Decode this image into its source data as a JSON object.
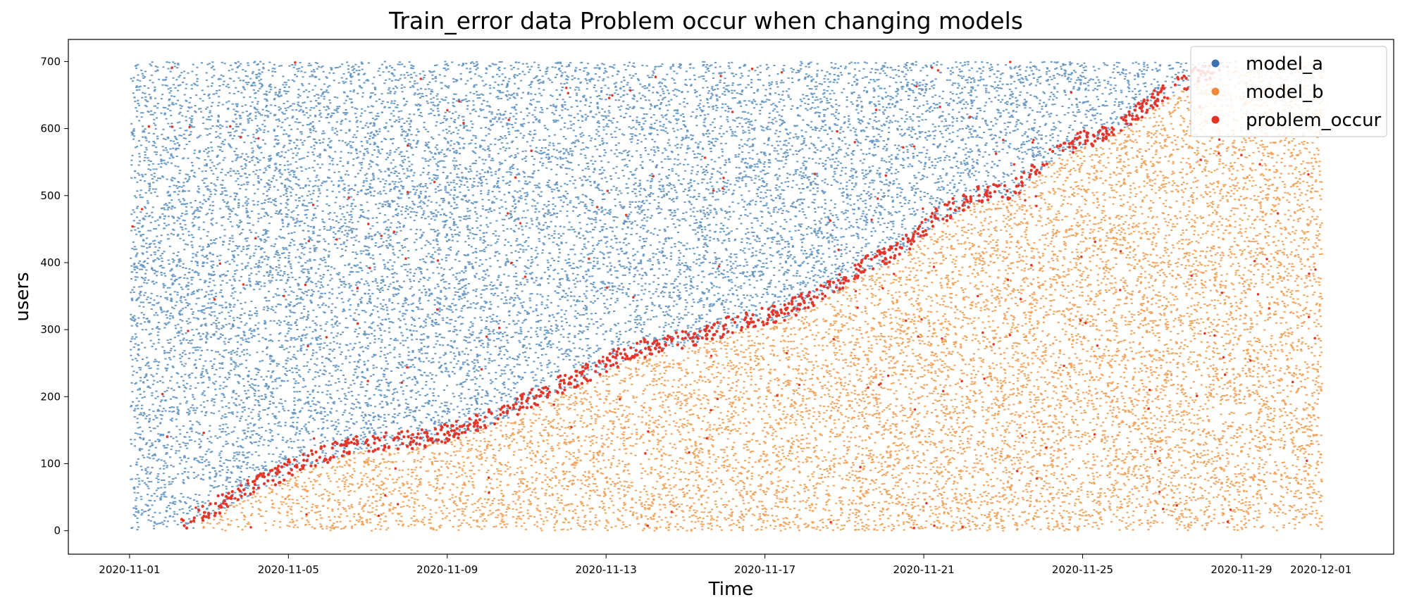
{
  "chart_data": {
    "type": "scatter",
    "title": "Train_error data Problem occur when changing models",
    "xlabel": "Time",
    "ylabel": "users",
    "xlim": [
      "2020-10-30T11:00",
      "2020-12-02T20:00"
    ],
    "ylim": [
      -35,
      733
    ],
    "x_ticks": [
      "2020-11-01",
      "2020-11-05",
      "2020-11-09",
      "2020-11-13",
      "2020-11-17",
      "2020-11-21",
      "2020-11-25",
      "2020-11-29",
      "2020-12-01"
    ],
    "y_ticks": [
      0,
      100,
      200,
      300,
      400,
      500,
      600,
      700
    ],
    "users_range": [
      0,
      700
    ],
    "time_range": [
      "2020-11-01",
      "2020-12-01"
    ],
    "grid": false,
    "legend": "top-right",
    "series": [
      {
        "name": "model_a",
        "color": "#6b9ac4",
        "legend_color": "#3c73ae",
        "description_region": "above switch boundary"
      },
      {
        "name": "model_b",
        "color": "#f2a55e",
        "legend_color": "#ee8a3a",
        "description_region": "below switch boundary"
      },
      {
        "name": "problem_occur",
        "color": "#e6352a",
        "legend_color": "#e03324",
        "description_region": "along switch boundary"
      }
    ],
    "switch_boundary": [
      {
        "t": "2020-11-01T00:00",
        "user": 0
      },
      {
        "t": "2020-11-02T12:00",
        "user": 0
      },
      {
        "t": "2020-11-03T00:00",
        "user": 22
      },
      {
        "t": "2020-11-04T06:00",
        "user": 60
      },
      {
        "t": "2020-11-05T06:00",
        "user": 90
      },
      {
        "t": "2020-11-06T06:00",
        "user": 110
      },
      {
        "t": "2020-11-07T00:00",
        "user": 122
      },
      {
        "t": "2020-11-08T12:00",
        "user": 128
      },
      {
        "t": "2020-11-09T12:00",
        "user": 145
      },
      {
        "t": "2020-11-10T12:00",
        "user": 168
      },
      {
        "t": "2020-11-11T12:00",
        "user": 198
      },
      {
        "t": "2020-11-12T12:00",
        "user": 225
      },
      {
        "t": "2020-11-13T12:00",
        "user": 255
      },
      {
        "t": "2020-11-14T12:00",
        "user": 270
      },
      {
        "t": "2020-11-15T12:00",
        "user": 282
      },
      {
        "t": "2020-11-16T12:00",
        "user": 305
      },
      {
        "t": "2020-11-17T12:00",
        "user": 318
      },
      {
        "t": "2020-11-18T12:00",
        "user": 345
      },
      {
        "t": "2020-11-19T12:00",
        "user": 385
      },
      {
        "t": "2020-11-20T12:00",
        "user": 415
      },
      {
        "t": "2020-11-21T06:00",
        "user": 455
      },
      {
        "t": "2020-11-22T06:00",
        "user": 490
      },
      {
        "t": "2020-11-23T06:00",
        "user": 498
      },
      {
        "t": "2020-11-24T06:00",
        "user": 555
      },
      {
        "t": "2020-11-25T06:00",
        "user": 578
      },
      {
        "t": "2020-11-26T06:00",
        "user": 608
      },
      {
        "t": "2020-11-27T00:00",
        "user": 642
      },
      {
        "t": "2020-11-28T00:00",
        "user": 672
      },
      {
        "t": "2020-11-29T00:00",
        "user": 700
      },
      {
        "t": "2020-12-01T00:00",
        "user": 700
      }
    ]
  }
}
